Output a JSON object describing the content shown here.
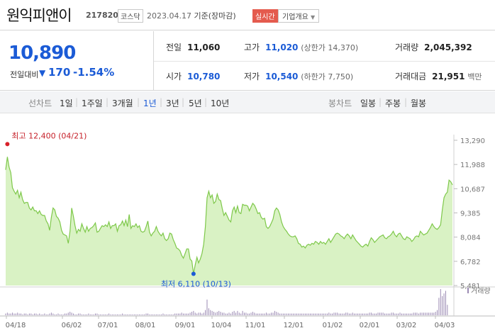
{
  "header": {
    "stock_name": "원익피앤이",
    "stock_code": "217820",
    "market_badge": "코스닥",
    "date": "2023.04.17",
    "date_suffix": "기준(장마감)",
    "realtime_button": "실시간",
    "company_info_button": "기업개요"
  },
  "quote": {
    "price": "10,890",
    "change_label": "전일대비",
    "change_arrow": "▼",
    "change_value": "170",
    "change_rate": "-1.54%",
    "prev_close_label": "전일",
    "prev_close": "11,060",
    "high_label": "고가",
    "high": "11,020",
    "upper_limit": "(상한가 14,370)",
    "volume_label": "거래량",
    "volume": "2,045,392",
    "open_label": "시가",
    "open": "10,780",
    "low_label": "저가",
    "low": "10,540",
    "lower_limit": "(하한가 7,750)",
    "amount_label": "거래대금",
    "amount": "21,951",
    "amount_unit": "백만"
  },
  "tabs": {
    "line_chart_label": "선차트",
    "periods": [
      "1일",
      "1주일",
      "3개월",
      "1년",
      "3년",
      "5년",
      "10년"
    ],
    "selected_period": "1년",
    "candle_chart_label": "봉차트",
    "candle_periods": [
      "일봉",
      "주봉",
      "월봉"
    ]
  },
  "colors": {
    "price_down": "#1b5bd6",
    "line": "#7ec84a",
    "fill": "#d9f2c4",
    "high_marker": "#d8202a",
    "low_marker": "#1b5bd6",
    "volume_bar": "#9b8ab3"
  },
  "chart_data": {
    "type": "area",
    "ylim": [
      5481,
      13290
    ],
    "yticks": [
      "13,290",
      "11,988",
      "10,687",
      "9,385",
      "8,084",
      "6,782",
      "5,481"
    ],
    "xticks": [
      "04/18",
      "06/02",
      "07/01",
      "08/01",
      "09/01",
      "10/04",
      "11/01",
      "12/01",
      "01/02",
      "02/01",
      "03/02",
      "04/03"
    ],
    "series": [
      {
        "values": [
          11700,
          12400,
          11850,
          11550,
          10750,
          10550,
          10400,
          10600,
          10200,
          10500,
          10100,
          9900,
          9950,
          9950,
          9650,
          9550,
          9700,
          9500,
          9500,
          9350,
          9500,
          9300,
          9250,
          9250,
          8950,
          8800,
          8450,
          9150,
          9650,
          9550,
          9200,
          9100,
          8900,
          8450,
          8250,
          8200,
          8150,
          7750,
          8400,
          9650,
          9200,
          8700,
          8300,
          8500,
          8400,
          8800,
          8550,
          8350,
          8650,
          8400,
          8550,
          8600,
          8700,
          8850,
          8350,
          8400,
          8550,
          8700,
          8650,
          8750,
          8650,
          8900,
          8550,
          8700,
          8700,
          8800,
          8400,
          8700,
          8750,
          8950,
          8700,
          9000,
          8650,
          9300,
          8550,
          8700,
          8650,
          8800,
          8600,
          8700,
          8400,
          8350,
          8400,
          8650,
          8950,
          8350,
          8150,
          8300,
          8400,
          8650,
          8400,
          8250,
          8150,
          8300,
          8000,
          7900,
          8000,
          8300,
          8250,
          7950,
          7750,
          7500,
          7450,
          7350,
          7100,
          6950,
          7200,
          7450,
          7450,
          6900,
          6800,
          6110,
          6600,
          7000,
          6700,
          6900,
          7200,
          7700,
          8650,
          10200,
          10550,
          10200,
          10350,
          9900,
          10000,
          10400,
          10100,
          10050,
          9600,
          9250,
          9400,
          9200,
          9000,
          8900,
          9500,
          9700,
          9400,
          9750,
          9400,
          9350,
          9850,
          9800,
          9800,
          9750,
          9500,
          9700,
          9900,
          9800,
          9600,
          9350,
          9400,
          9150,
          9050,
          9100,
          8650,
          8550,
          8650,
          8850,
          9050,
          9500,
          9650,
          9550,
          9300,
          8900,
          8650,
          8500,
          8400,
          8250,
          8150,
          8100,
          8100,
          8150,
          8000,
          7750,
          7700,
          7550,
          7600,
          7500,
          7650,
          7700,
          7650,
          7750,
          7700,
          7850,
          7800,
          7700,
          7850,
          7750,
          7800,
          7700,
          7850,
          8000,
          7800,
          7950,
          8100,
          8250,
          8300,
          8250,
          8150,
          8100,
          8000,
          8150,
          8250,
          8150,
          8000,
          8200,
          8050,
          7900,
          7800,
          7700,
          7600,
          7550,
          7650,
          7700,
          7600,
          7850,
          8050,
          7950,
          7800,
          7900,
          8000,
          8100,
          8150,
          8200,
          8050,
          8000,
          8100,
          8150,
          8250,
          8400,
          8200,
          8100,
          8250,
          8300,
          8150,
          8000,
          7950,
          8100,
          8050,
          8000,
          7850,
          7950,
          8100,
          8150,
          8100,
          8400,
          8300,
          8200,
          8250,
          8300,
          8450,
          8600,
          8800,
          8650,
          8550,
          8500,
          8600,
          8750,
          9550,
          10200,
          10400,
          10500,
          11150,
          11060,
          10890
        ]
      }
    ],
    "annotations": {
      "high_label": "최고 12,400 (04/21)",
      "low_label": "최저 6,110 (10/13)"
    },
    "volume_legend": "거래량",
    "volume_values": [
      2,
      3,
      2,
      2,
      3,
      2,
      2,
      3,
      2,
      2,
      1,
      2,
      2,
      1,
      2,
      2,
      1,
      2,
      2,
      1,
      2,
      1,
      1,
      2,
      1,
      1,
      2,
      3,
      2,
      1,
      1,
      2,
      1,
      1,
      1,
      2,
      2,
      3,
      4,
      3,
      2,
      1,
      1,
      2,
      2,
      1,
      1,
      1,
      1,
      2,
      1,
      1,
      1,
      2,
      2,
      1,
      1,
      1,
      1,
      1,
      1,
      2,
      1,
      1,
      1,
      1,
      1,
      1,
      1,
      2,
      1,
      1,
      1,
      1,
      1,
      1,
      1,
      1,
      1,
      1,
      1,
      1,
      1,
      2,
      2,
      1,
      1,
      1,
      1,
      1,
      1,
      1,
      1,
      2,
      1,
      1,
      1,
      1,
      1,
      1,
      2,
      2,
      2,
      2,
      3,
      2,
      2,
      2,
      2,
      3,
      4,
      5,
      3,
      2,
      3,
      3,
      2,
      3,
      6,
      18,
      8,
      6,
      5,
      4,
      3,
      4,
      5,
      4,
      3,
      3,
      2,
      2,
      3,
      2,
      4,
      5,
      3,
      5,
      3,
      2,
      5,
      3,
      3,
      2,
      2,
      3,
      4,
      3,
      2,
      2,
      2,
      2,
      2,
      2,
      3,
      2,
      2,
      3,
      3,
      5,
      4,
      3,
      2,
      2,
      2,
      2,
      2,
      2,
      2,
      2,
      2,
      2,
      2,
      2,
      2,
      2,
      2,
      2,
      2,
      2,
      2,
      2,
      2,
      2,
      2,
      2,
      2,
      2,
      2,
      2,
      2,
      3,
      2,
      2,
      3,
      3,
      3,
      2,
      2,
      2,
      2,
      3,
      3,
      2,
      2,
      3,
      2,
      2,
      2,
      2,
      2,
      2,
      2,
      2,
      2,
      3,
      3,
      2,
      2,
      2,
      3,
      3,
      3,
      3,
      2,
      2,
      2,
      2,
      3,
      3,
      2,
      2,
      2,
      3,
      2,
      2,
      2,
      2,
      2,
      2,
      2,
      3,
      3,
      3,
      2,
      3,
      3,
      3,
      3,
      3,
      3,
      3,
      3,
      3,
      4,
      6,
      20,
      30,
      22,
      25,
      28,
      12
    ]
  }
}
